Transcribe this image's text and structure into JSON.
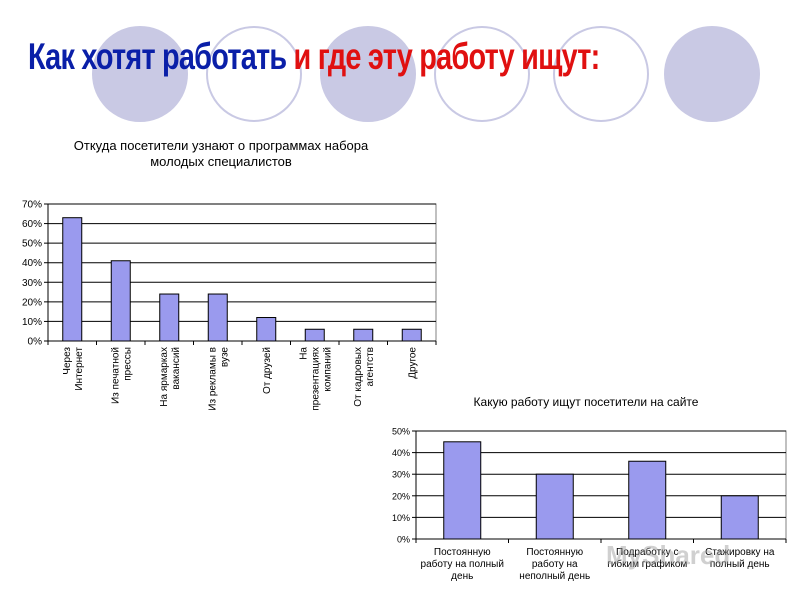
{
  "slide": {
    "title_part1": "Как хотят работать ",
    "title_part2": "и где эту работу ищут:",
    "colors": {
      "title_blue": "#0a1fa8",
      "title_red": "#e01010",
      "bar_fill": "#9a9aee",
      "circle": "#c9c9e4"
    }
  },
  "watermark": "MyShared",
  "chart_data": [
    {
      "type": "bar",
      "title": [
        "Откуда посетители узнают о программах набора",
        "молодых специалистов"
      ],
      "categories": [
        [
          "Через",
          "Интернет"
        ],
        [
          "Из печатной",
          "прессы"
        ],
        [
          "На ярмарках",
          "вакансий"
        ],
        [
          "Из рекламы в",
          "вузе"
        ],
        [
          "От друзей"
        ],
        [
          "На",
          "презентациях",
          "компаний"
        ],
        [
          "От кадровых",
          "агентств"
        ],
        [
          "Другое"
        ]
      ],
      "values": [
        0.63,
        0.41,
        0.24,
        0.24,
        0.12,
        0.06,
        0.06,
        0.06
      ],
      "ylim": [
        0,
        0.7
      ],
      "yticks": [
        "0%",
        "10%",
        "20%",
        "30%",
        "40%",
        "50%",
        "60%",
        "70%"
      ],
      "grid": true,
      "legend": "none"
    },
    {
      "type": "bar",
      "title": [
        "Какую работу ищут посетители на сайте"
      ],
      "categories": [
        [
          "Постоянную",
          "работу на полный",
          "день"
        ],
        [
          "Постоянную",
          "работу на",
          "неполный день"
        ],
        [
          "Подработку с",
          "гибким графиком"
        ],
        [
          "Стажировку на",
          "полный день"
        ]
      ],
      "values": [
        0.45,
        0.3,
        0.36,
        0.2
      ],
      "ylim": [
        0,
        0.5
      ],
      "yticks": [
        "0%",
        "10%",
        "20%",
        "30%",
        "40%",
        "50%"
      ],
      "grid": true,
      "legend": "none"
    }
  ]
}
